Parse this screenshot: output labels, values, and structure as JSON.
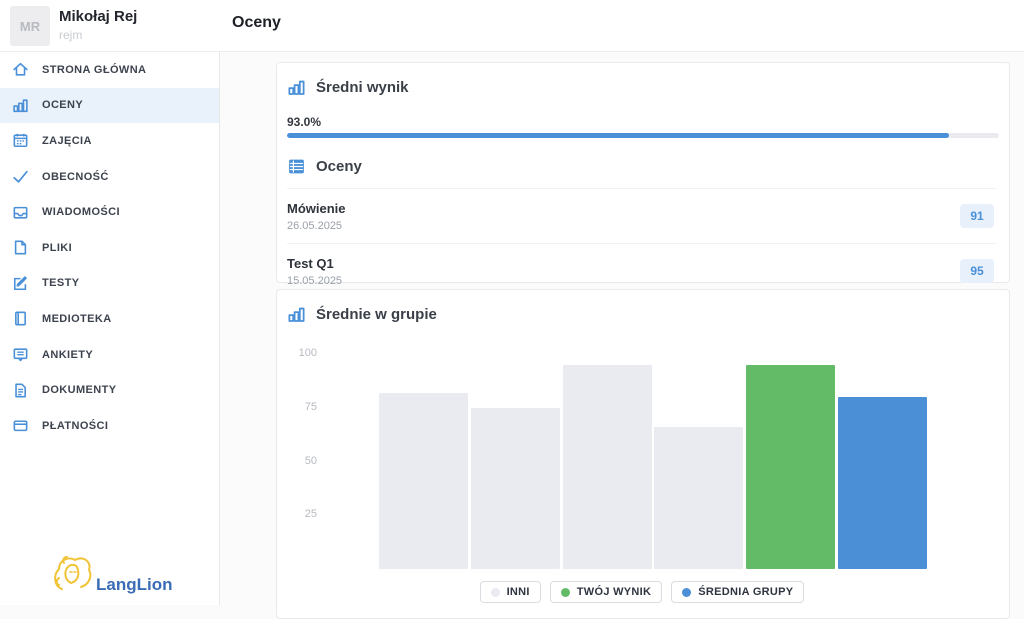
{
  "header": {
    "avatar_initials": "MR",
    "user_name": "Mikołaj Rej",
    "user_login": "rejm",
    "page_title": "Oceny"
  },
  "sidebar": {
    "items": [
      {
        "label": "STRONA GŁÓWNA",
        "icon": "home-icon",
        "active": false
      },
      {
        "label": "OCENY",
        "icon": "bar-chart-icon",
        "active": true
      },
      {
        "label": "ZAJĘCIA",
        "icon": "calendar-icon",
        "active": false
      },
      {
        "label": "OBECNOŚĆ",
        "icon": "check-icon",
        "active": false
      },
      {
        "label": "WIADOMOŚCI",
        "icon": "inbox-icon",
        "active": false
      },
      {
        "label": "PLIKI",
        "icon": "file-icon",
        "active": false
      },
      {
        "label": "TESTY",
        "icon": "edit-icon",
        "active": false
      },
      {
        "label": "MEDIOTEKA",
        "icon": "book-icon",
        "active": false
      },
      {
        "label": "ANKIETY",
        "icon": "survey-icon",
        "active": false
      },
      {
        "label": "DOKUMENTY",
        "icon": "document-icon",
        "active": false
      },
      {
        "label": "PŁATNOŚCI",
        "icon": "wallet-icon",
        "active": false
      }
    ],
    "logo_text": "LangLion"
  },
  "average_card": {
    "title": "Średni wynik",
    "value_label": "93.0%",
    "value": 93.0,
    "grades_title": "Oceny",
    "grades": [
      {
        "title": "Mówienie",
        "date": "26.05.2025",
        "score": "91"
      },
      {
        "title": "Test Q1",
        "date": "15.05.2025",
        "score": "95"
      }
    ]
  },
  "chart_card": {
    "title": "Średnie w grupie"
  },
  "chart_data": {
    "type": "bar",
    "title": "Średnie w grupie",
    "ylim": [
      0,
      100
    ],
    "yticks": [
      100,
      75,
      50,
      25
    ],
    "grid": false,
    "legend_position": "bottom",
    "categories": [
      "",
      "",
      "",
      "",
      "",
      ""
    ],
    "bars": [
      {
        "series": "INNI",
        "value": 82
      },
      {
        "series": "INNI",
        "value": 75
      },
      {
        "series": "INNI",
        "value": 95
      },
      {
        "series": "INNI",
        "value": 66
      },
      {
        "series": "TWÓJ WYNIK",
        "value": 95
      },
      {
        "series": "ŚREDNIA GRUPY",
        "value": 80
      }
    ],
    "series": [
      {
        "name": "INNI",
        "color": "#e9ebf1"
      },
      {
        "name": "TWÓJ WYNIK",
        "color": "#63bb67"
      },
      {
        "name": "ŚREDNIA GRUPY",
        "color": "#4b8fd7"
      }
    ]
  },
  "colors": {
    "accent_blue": "#4a90d9",
    "your_score_green": "#63bb67",
    "others_gray": "#e9ebf1",
    "badge_bg": "#e7f0fb",
    "progress_track": "#e9ebee",
    "logo_gold": "#f1c437",
    "logo_blue": "#3a6db5"
  }
}
